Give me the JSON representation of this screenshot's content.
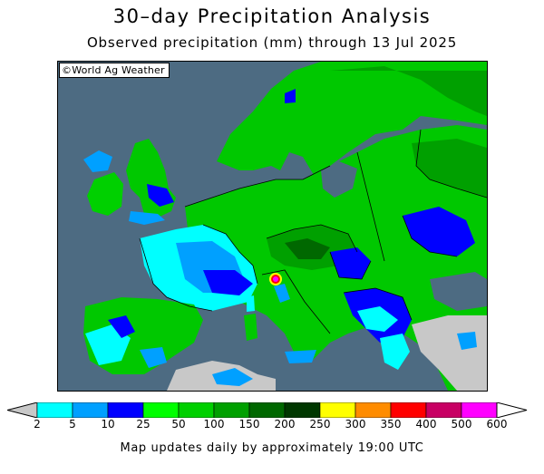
{
  "title": "30–day Precipitation Analysis",
  "subtitle": "Observed precipitation (mm) through 13 Jul 2025",
  "credit": "©World Ag Weather",
  "footer": "Map updates daily by approximately 19:00 UTC",
  "legend": {
    "labels": [
      "2",
      "5",
      "10",
      "25",
      "50",
      "100",
      "150",
      "200",
      "250",
      "300",
      "350",
      "400",
      "500",
      "600"
    ],
    "colors": [
      "#00ffff",
      "#00a0ff",
      "#0000ff",
      "#00ff00",
      "#00d000",
      "#00a000",
      "#006800",
      "#003800",
      "#ffff00",
      "#ff8c00",
      "#ff0000",
      "#c80064",
      "#ff00ff",
      "#a050d0"
    ],
    "below_color": "#c8c8c8",
    "above_color": "#ffffff"
  },
  "map_colors": {
    "ocean": "#4d6b82",
    "dry": "#c8c8c8"
  }
}
